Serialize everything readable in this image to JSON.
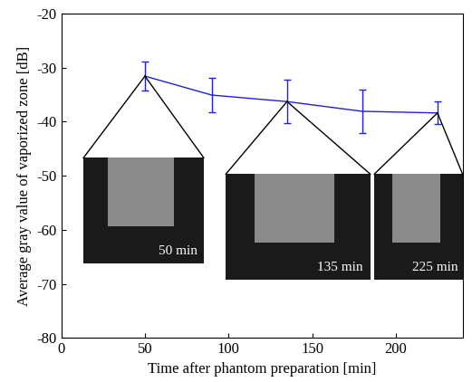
{
  "chart_data": {
    "type": "line",
    "x_label": "Time after phantom preparation [min]",
    "y_label": "Average gray value of vaporized zone [dB]",
    "x": [
      50,
      90,
      135,
      180,
      225
    ],
    "values": [
      -31.6,
      -35.1,
      -36.3,
      -38.1,
      -38.4
    ],
    "errors": [
      2.7,
      3.2,
      4.0,
      4.0,
      2.1
    ],
    "color": "#1f1fdd",
    "xlim": [
      0,
      240
    ],
    "xticks": [
      0,
      50,
      100,
      150,
      200
    ],
    "ylim": [
      -80,
      -20
    ],
    "yticks": [
      -80,
      -70,
      -60,
      -50,
      -40,
      -30,
      -20
    ],
    "grid": false,
    "annotations": [
      {
        "x": 50,
        "label": "50 min"
      },
      {
        "x": 135,
        "label": "135 min"
      },
      {
        "x": 225,
        "label": "225 min"
      }
    ]
  }
}
